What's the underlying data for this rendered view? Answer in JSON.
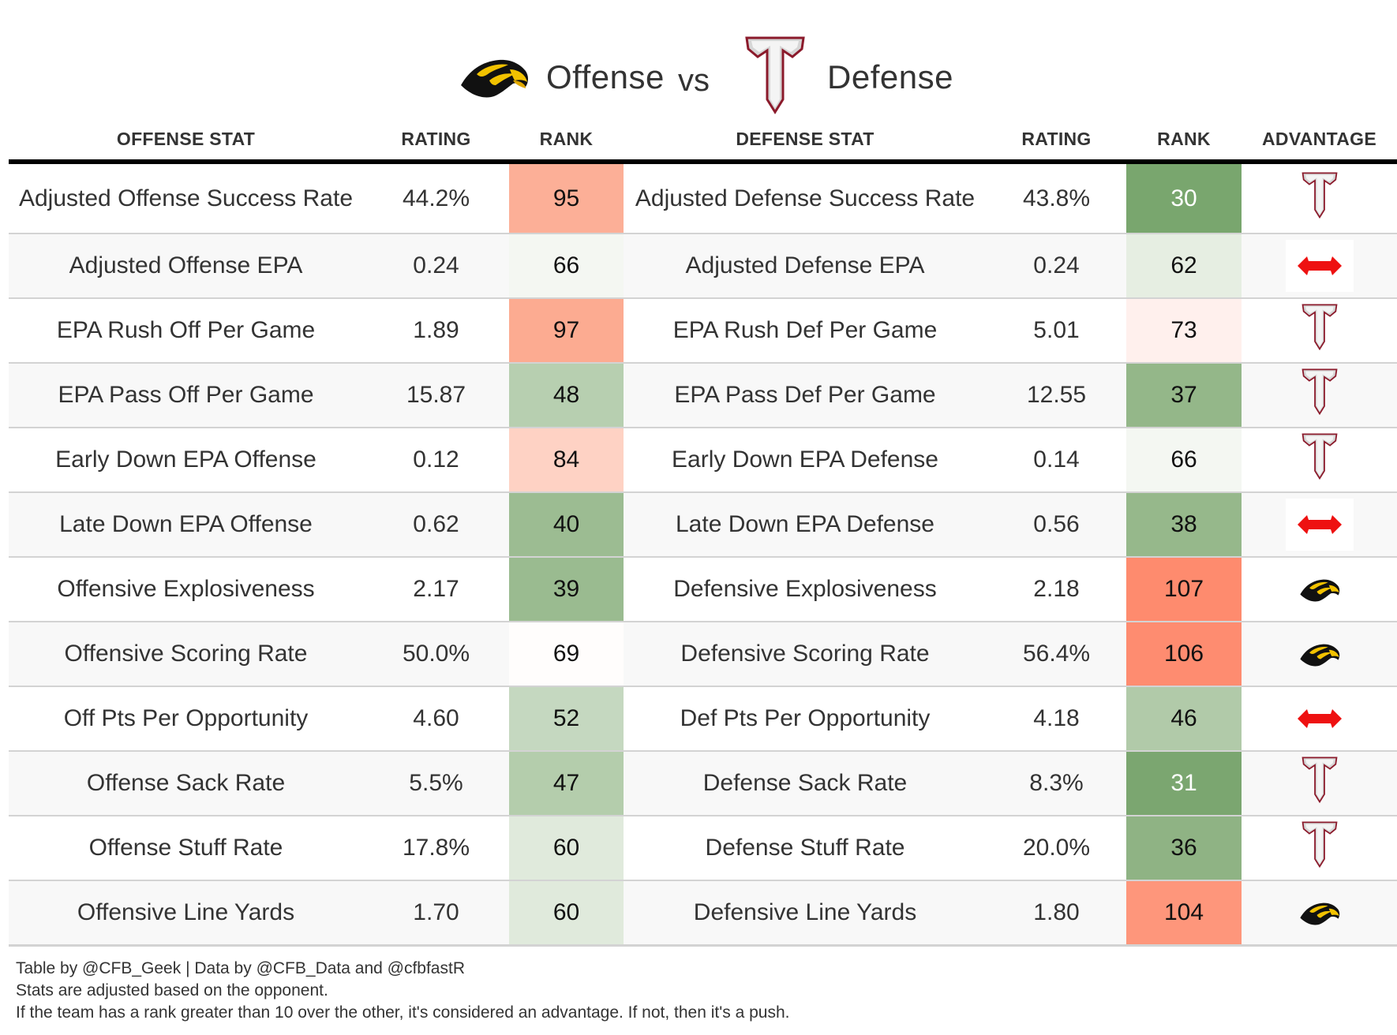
{
  "title": {
    "offense_label": "Offense",
    "vs_label": "vs",
    "defense_label": "Defense",
    "offense_logo": "golden-eagle-logo",
    "defense_logo": "troy-t-logo"
  },
  "columns": {
    "offense_stat": "OFFENSE STAT",
    "offense_rating": "RATING",
    "offense_rank": "RANK",
    "defense_stat": "DEFENSE STAT",
    "defense_rating": "RATING",
    "defense_rank": "RANK",
    "advantage": "ADVANTAGE"
  },
  "icons": {
    "offense": "golden-eagle-icon",
    "defense": "troy-t-icon",
    "push": "double-arrow-icon"
  },
  "colors": {
    "push_arrow": "#ee1111",
    "troy_outline": "#8b1a2b",
    "eagle_gold": "#f2c200",
    "header_rule": "#000000",
    "row_alt": "#f8f8f8"
  },
  "rows": [
    {
      "off_stat": "Adjusted Offense Success Rate",
      "off_rating": "44.2%",
      "off_rank": "95",
      "off_rank_color": "#fcaf97",
      "def_stat": "Adjusted Defense Success Rate",
      "def_rating": "43.8%",
      "def_rank": "30",
      "def_rank_color": "#79a66e",
      "def_rank_light": true,
      "advantage": "defense"
    },
    {
      "off_stat": "Adjusted Offense EPA",
      "off_rating": "0.24",
      "off_rank": "66",
      "off_rank_color": "#f4f7f2",
      "def_stat": "Adjusted Defense EPA",
      "def_rating": "0.24",
      "def_rank": "62",
      "def_rank_color": "#e6eee2",
      "advantage": "push"
    },
    {
      "off_stat": "EPA Rush Off Per Game",
      "off_rating": "1.89",
      "off_rank": "97",
      "off_rank_color": "#fcab91",
      "def_stat": "EPA Rush Def Per Game",
      "def_rating": "5.01",
      "def_rank": "73",
      "def_rank_color": "#fff0ed",
      "advantage": "defense"
    },
    {
      "off_stat": "EPA Pass Off Per Game",
      "off_rating": "15.87",
      "off_rank": "48",
      "off_rank_color": "#b7cfb0",
      "def_stat": "EPA Pass Def Per Game",
      "def_rating": "12.55",
      "def_rank": "37",
      "def_rank_color": "#94b789",
      "advantage": "defense"
    },
    {
      "off_stat": "Early Down EPA Offense",
      "off_rating": "0.12",
      "off_rank": "84",
      "off_rank_color": "#fed2c4",
      "def_stat": "Early Down EPA Defense",
      "def_rating": "0.14",
      "def_rank": "66",
      "def_rank_color": "#f4f7f2",
      "advantage": "defense"
    },
    {
      "off_stat": "Late Down EPA Offense",
      "off_rating": "0.62",
      "off_rank": "40",
      "off_rank_color": "#9cbc92",
      "def_stat": "Late Down EPA Defense",
      "def_rating": "0.56",
      "def_rank": "38",
      "def_rank_color": "#96b88b",
      "advantage": "push"
    },
    {
      "off_stat": "Offensive Explosiveness",
      "off_rating": "2.17",
      "off_rank": "39",
      "off_rank_color": "#9abb90",
      "def_stat": "Defensive Explosiveness",
      "def_rating": "2.18",
      "def_rank": "107",
      "def_rank_color": "#fe8b6e",
      "advantage": "offense"
    },
    {
      "off_stat": "Offensive Scoring Rate",
      "off_rating": "50.0%",
      "off_rank": "69",
      "off_rank_color": "#fffdfc",
      "def_stat": "Defensive Scoring Rate",
      "def_rating": "56.4%",
      "def_rank": "106",
      "def_rank_color": "#fe8c70",
      "advantage": "offense"
    },
    {
      "off_stat": "Off Pts Per Opportunity",
      "off_rating": "4.60",
      "off_rank": "52",
      "off_rank_color": "#c5d8c0",
      "def_stat": "Def Pts Per Opportunity",
      "def_rating": "4.18",
      "def_rank": "46",
      "def_rank_color": "#b1caa9",
      "advantage": "push"
    },
    {
      "off_stat": "Offense Sack Rate",
      "off_rating": "5.5%",
      "off_rank": "47",
      "off_rank_color": "#b4cdac",
      "def_stat": "Defense Sack Rate",
      "def_rating": "8.3%",
      "def_rank": "31",
      "def_rank_color": "#7ba670",
      "def_rank_light": true,
      "advantage": "defense"
    },
    {
      "off_stat": "Offense Stuff Rate",
      "off_rating": "17.8%",
      "off_rank": "60",
      "off_rank_color": "#e0eadc",
      "def_stat": "Defense Stuff Rate",
      "def_rating": "20.0%",
      "def_rank": "36",
      "def_rank_color": "#8fb384",
      "advantage": "defense"
    },
    {
      "off_stat": "Offensive Line Yards",
      "off_rating": "1.70",
      "off_rank": "60",
      "off_rank_color": "#e0eadc",
      "def_stat": "Defensive Line Yards",
      "def_rating": "1.80",
      "def_rank": "104",
      "def_rank_color": "#fe967b",
      "advantage": "offense"
    }
  ],
  "footer": {
    "line1": "Table by @CFB_Geek | Data by @CFB_Data and @cfbfastR",
    "line2": "Stats are adjusted based on the opponent.",
    "line3": "If the team has a rank greater than 10 over the other, it's considered an advantage. If not, then it's a push."
  }
}
